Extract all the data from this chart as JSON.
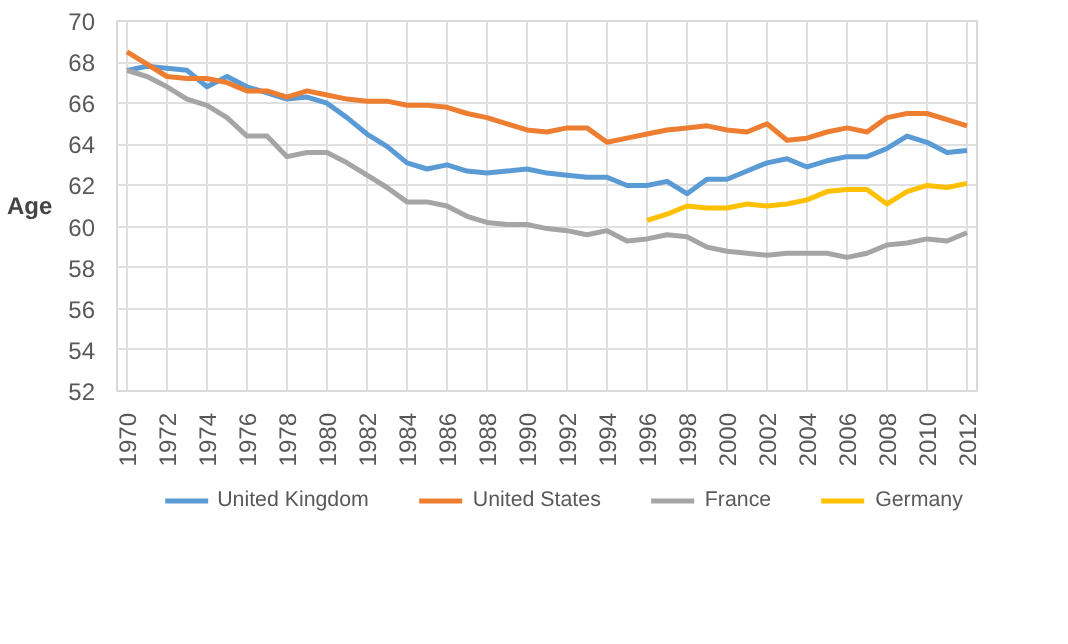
{
  "chart_data": {
    "type": "line",
    "ylabel": "Age",
    "x": [
      1970,
      1971,
      1972,
      1973,
      1974,
      1975,
      1976,
      1977,
      1978,
      1979,
      1980,
      1981,
      1982,
      1983,
      1984,
      1985,
      1986,
      1987,
      1988,
      1989,
      1990,
      1991,
      1992,
      1993,
      1994,
      1995,
      1996,
      1997,
      1998,
      1999,
      2000,
      2001,
      2002,
      2003,
      2004,
      2005,
      2006,
      2007,
      2008,
      2009,
      2010,
      2011,
      2012
    ],
    "series": [
      {
        "name": "United Kingdom",
        "color": "#5b9bd5",
        "values": [
          67.6,
          67.8,
          67.7,
          67.6,
          66.8,
          67.3,
          66.8,
          66.5,
          66.2,
          66.3,
          66.0,
          65.3,
          64.5,
          63.9,
          63.1,
          62.8,
          63.0,
          62.7,
          62.6,
          62.7,
          62.8,
          62.6,
          62.5,
          62.4,
          62.4,
          62.0,
          62.0,
          62.2,
          61.6,
          62.3,
          62.3,
          62.7,
          63.1,
          63.3,
          62.9,
          63.2,
          63.4,
          63.4,
          63.8,
          64.4,
          64.1,
          63.6,
          63.7
        ]
      },
      {
        "name": "United States",
        "color": "#ed7d31",
        "values": [
          68.5,
          67.9,
          67.3,
          67.2,
          67.2,
          67.0,
          66.6,
          66.6,
          66.3,
          66.6,
          66.4,
          66.2,
          66.1,
          66.1,
          65.9,
          65.9,
          65.8,
          65.5,
          65.3,
          65.0,
          64.7,
          64.6,
          64.8,
          64.8,
          64.1,
          64.3,
          64.5,
          64.7,
          64.8,
          64.9,
          64.7,
          64.6,
          65.0,
          64.2,
          64.3,
          64.6,
          64.8,
          64.6,
          65.3,
          65.5,
          65.5,
          65.2,
          64.9
        ]
      },
      {
        "name": "France",
        "color": "#a5a5a5",
        "values": [
          67.6,
          67.3,
          66.8,
          66.2,
          65.9,
          65.3,
          64.4,
          64.4,
          63.4,
          63.6,
          63.6,
          63.1,
          62.5,
          61.9,
          61.2,
          61.2,
          61.0,
          60.5,
          60.2,
          60.1,
          60.1,
          59.9,
          59.8,
          59.6,
          59.8,
          59.3,
          59.4,
          59.6,
          59.5,
          59.0,
          58.8,
          58.7,
          58.6,
          58.7,
          58.7,
          58.7,
          58.5,
          58.7,
          59.1,
          59.2,
          59.4,
          59.3,
          59.7
        ]
      },
      {
        "name": "Germany",
        "color": "#ffc000",
        "values": [
          null,
          null,
          null,
          null,
          null,
          null,
          null,
          null,
          null,
          null,
          null,
          null,
          null,
          null,
          null,
          null,
          null,
          null,
          null,
          null,
          null,
          null,
          null,
          null,
          null,
          null,
          60.3,
          60.6,
          61.0,
          60.9,
          60.9,
          61.1,
          61.0,
          61.1,
          61.3,
          61.7,
          61.8,
          61.8,
          61.1,
          61.7,
          62.0,
          61.9,
          62.1
        ]
      }
    ],
    "xlim": [
      1969.5,
      2012.5
    ],
    "xticks": [
      1970,
      1972,
      1974,
      1976,
      1978,
      1980,
      1982,
      1984,
      1986,
      1988,
      1990,
      1992,
      1994,
      1996,
      1998,
      2000,
      2002,
      2004,
      2006,
      2008,
      2010,
      2012
    ],
    "ylim": [
      52,
      70
    ],
    "yticks": [
      52,
      54,
      56,
      58,
      60,
      62,
      64,
      66,
      68,
      70
    ],
    "grid": true,
    "legend": "bottom"
  }
}
